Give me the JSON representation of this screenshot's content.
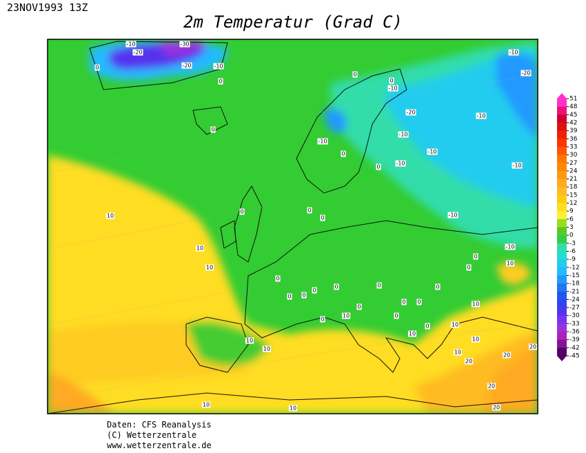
{
  "header": {
    "timestamp": "23NOV1993 13Z",
    "title": "2m Temperatur (Grad C)"
  },
  "legend": {
    "ticks": [
      51,
      48,
      45,
      42,
      39,
      36,
      33,
      30,
      27,
      24,
      21,
      18,
      15,
      12,
      9,
      6,
      3,
      0,
      -3,
      -6,
      -9,
      -12,
      -15,
      -18,
      -21,
      -24,
      -27,
      -30,
      -33,
      -36,
      -39,
      -42,
      -45
    ],
    "colors": [
      "#ff33cc",
      "#ee1177",
      "#cc0033",
      "#dd1111",
      "#ee2200",
      "#ff3300",
      "#ff5500",
      "#ff7700",
      "#ff8800",
      "#ff9911",
      "#ffaa22",
      "#ffbb22",
      "#ffcc11",
      "#ffdd22",
      "#ffee33",
      "#99dd22",
      "#55cc22",
      "#33cc44",
      "#33ddaa",
      "#22ddcc",
      "#22ccee",
      "#22bbff",
      "#2299ff",
      "#2277ee",
      "#2255ee",
      "#3344ee",
      "#5533ee",
      "#7733ee",
      "#9933dd",
      "#aa22bb",
      "#881199",
      "#550066"
    ]
  },
  "contour_labels": [
    -10,
    -20,
    -30,
    -20,
    -10,
    0,
    0,
    -10,
    -20,
    0,
    0,
    -10,
    -20,
    -10,
    -10,
    -10,
    -10,
    0,
    0,
    -10,
    -10,
    0,
    0,
    0,
    0,
    -10,
    10,
    10,
    10,
    0,
    -10,
    0,
    10,
    0,
    0,
    0,
    0,
    0,
    0,
    0,
    0,
    0,
    0,
    0,
    10,
    10,
    10,
    0,
    10,
    10,
    10,
    10,
    10,
    20,
    20,
    20,
    20,
    10,
    10,
    20,
    0
  ],
  "footer": {
    "source": "Daten: CFS Reanalysis",
    "copyright": "(C) Wetterzentrale",
    "url": "www.wetterzentrale.de"
  }
}
